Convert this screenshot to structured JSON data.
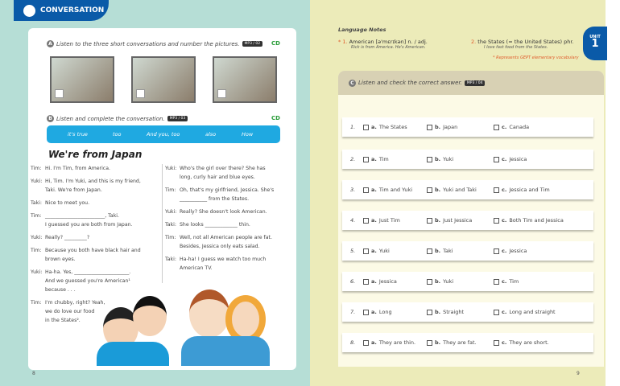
{
  "left_page": {
    "section": "CONVERSATION",
    "a": {
      "letter": "A",
      "instruction": "Listen to the three short conversations and number the pictures.",
      "audio": "MP3 / 02",
      "cd": "CD"
    },
    "b": {
      "letter": "B",
      "instruction": "Listen and complete the conversation.",
      "audio": "MP3 / 03",
      "cd": "CD"
    },
    "word_bank": [
      "it's true",
      "too",
      "And you, too",
      "also",
      "How"
    ],
    "title": "We're from Japan",
    "dialogue_left": [
      {
        "sp": "Tim:",
        "lines": [
          "Hi. I'm Tim, from America."
        ]
      },
      {
        "sp": "Yuki:",
        "lines": [
          "Hi, Tim. I'm Yuki, and this is my friend,",
          "Taki. We're from Japan."
        ]
      },
      {
        "sp": "Taki:",
        "lines": [
          "Nice to meet you."
        ]
      },
      {
        "sp": "Tim:",
        "lines": [
          "________________________, Taki.",
          "I guessed you are both from Japan."
        ]
      },
      {
        "sp": "Yuki:",
        "lines": [
          "Really? _________?"
        ]
      },
      {
        "sp": "Tim:",
        "lines": [
          "Because you both have black hair and",
          "brown eyes."
        ]
      },
      {
        "sp": "Yuki:",
        "lines": [
          "Ha-ha. Yes, ______________________.",
          "And we guessed you're American¹",
          "because . . ."
        ]
      },
      {
        "sp": "Tim:",
        "lines": [
          "I'm chubby, right? Yeah,",
          "we do love our food",
          "in the States²."
        ]
      }
    ],
    "dialogue_right": [
      {
        "sp": "Yuki:",
        "lines": [
          "Who's the girl over there? She has",
          "long, curly hair and blue eyes."
        ]
      },
      {
        "sp": "Tim:",
        "lines": [
          "Oh, that's my girlfriend, Jessica. She's",
          "___________ from the States."
        ]
      },
      {
        "sp": "Yuki:",
        "lines": [
          "Really? She doesn't look American."
        ]
      },
      {
        "sp": "Taki:",
        "lines": [
          "She looks _____________ thin."
        ]
      },
      {
        "sp": "Tim:",
        "lines": [
          "Well, not all American people are fat.",
          "Besides, Jessica only eats salad."
        ]
      },
      {
        "sp": "Taki:",
        "lines": [
          "Ha-ha! I guess we watch too much",
          "American TV."
        ]
      }
    ],
    "page_number": "8"
  },
  "right_page": {
    "notes_title": "Language Notes",
    "notes": [
      {
        "star": "*",
        "num": "1.",
        "text": "American [ə'mɛrɪkən] n. / adj.",
        "example": "Rick is from America. He's American."
      },
      {
        "star": "",
        "num": "2.",
        "text": "the States (= the United States) phr.",
        "example": "I love fast food from the States."
      }
    ],
    "footnote": "* Represents GEPT elementary vocabulary",
    "unit_label": "UNIT",
    "unit_number": "1",
    "c": {
      "letter": "C",
      "instruction": "Listen and check the correct answer.",
      "audio": "MP3 / 04"
    },
    "questions": [
      {
        "n": "1.",
        "a": "The States",
        "b": "Japan",
        "c": "Canada"
      },
      {
        "n": "2.",
        "a": "Tim",
        "b": "Yuki",
        "c": "Jessica"
      },
      {
        "n": "3.",
        "a": "Tim and Yuki",
        "b": "Yuki and Taki",
        "c": "Jessica and Tim"
      },
      {
        "n": "4.",
        "a": "Just Tim",
        "b": "Just Jessica",
        "c": "Both Tim and Jessica"
      },
      {
        "n": "5.",
        "a": "Yuki",
        "b": "Taki",
        "c": "Jessica"
      },
      {
        "n": "6.",
        "a": "Jessica",
        "b": "Yuki",
        "c": "Tim"
      },
      {
        "n": "7.",
        "a": "Long",
        "b": "Straight",
        "c": "Long and straight"
      },
      {
        "n": "8.",
        "a": "They are thin.",
        "b": "They are fat.",
        "c": "They are short."
      }
    ],
    "option_letters": [
      "a.",
      "b.",
      "c."
    ],
    "page_number": "9"
  }
}
